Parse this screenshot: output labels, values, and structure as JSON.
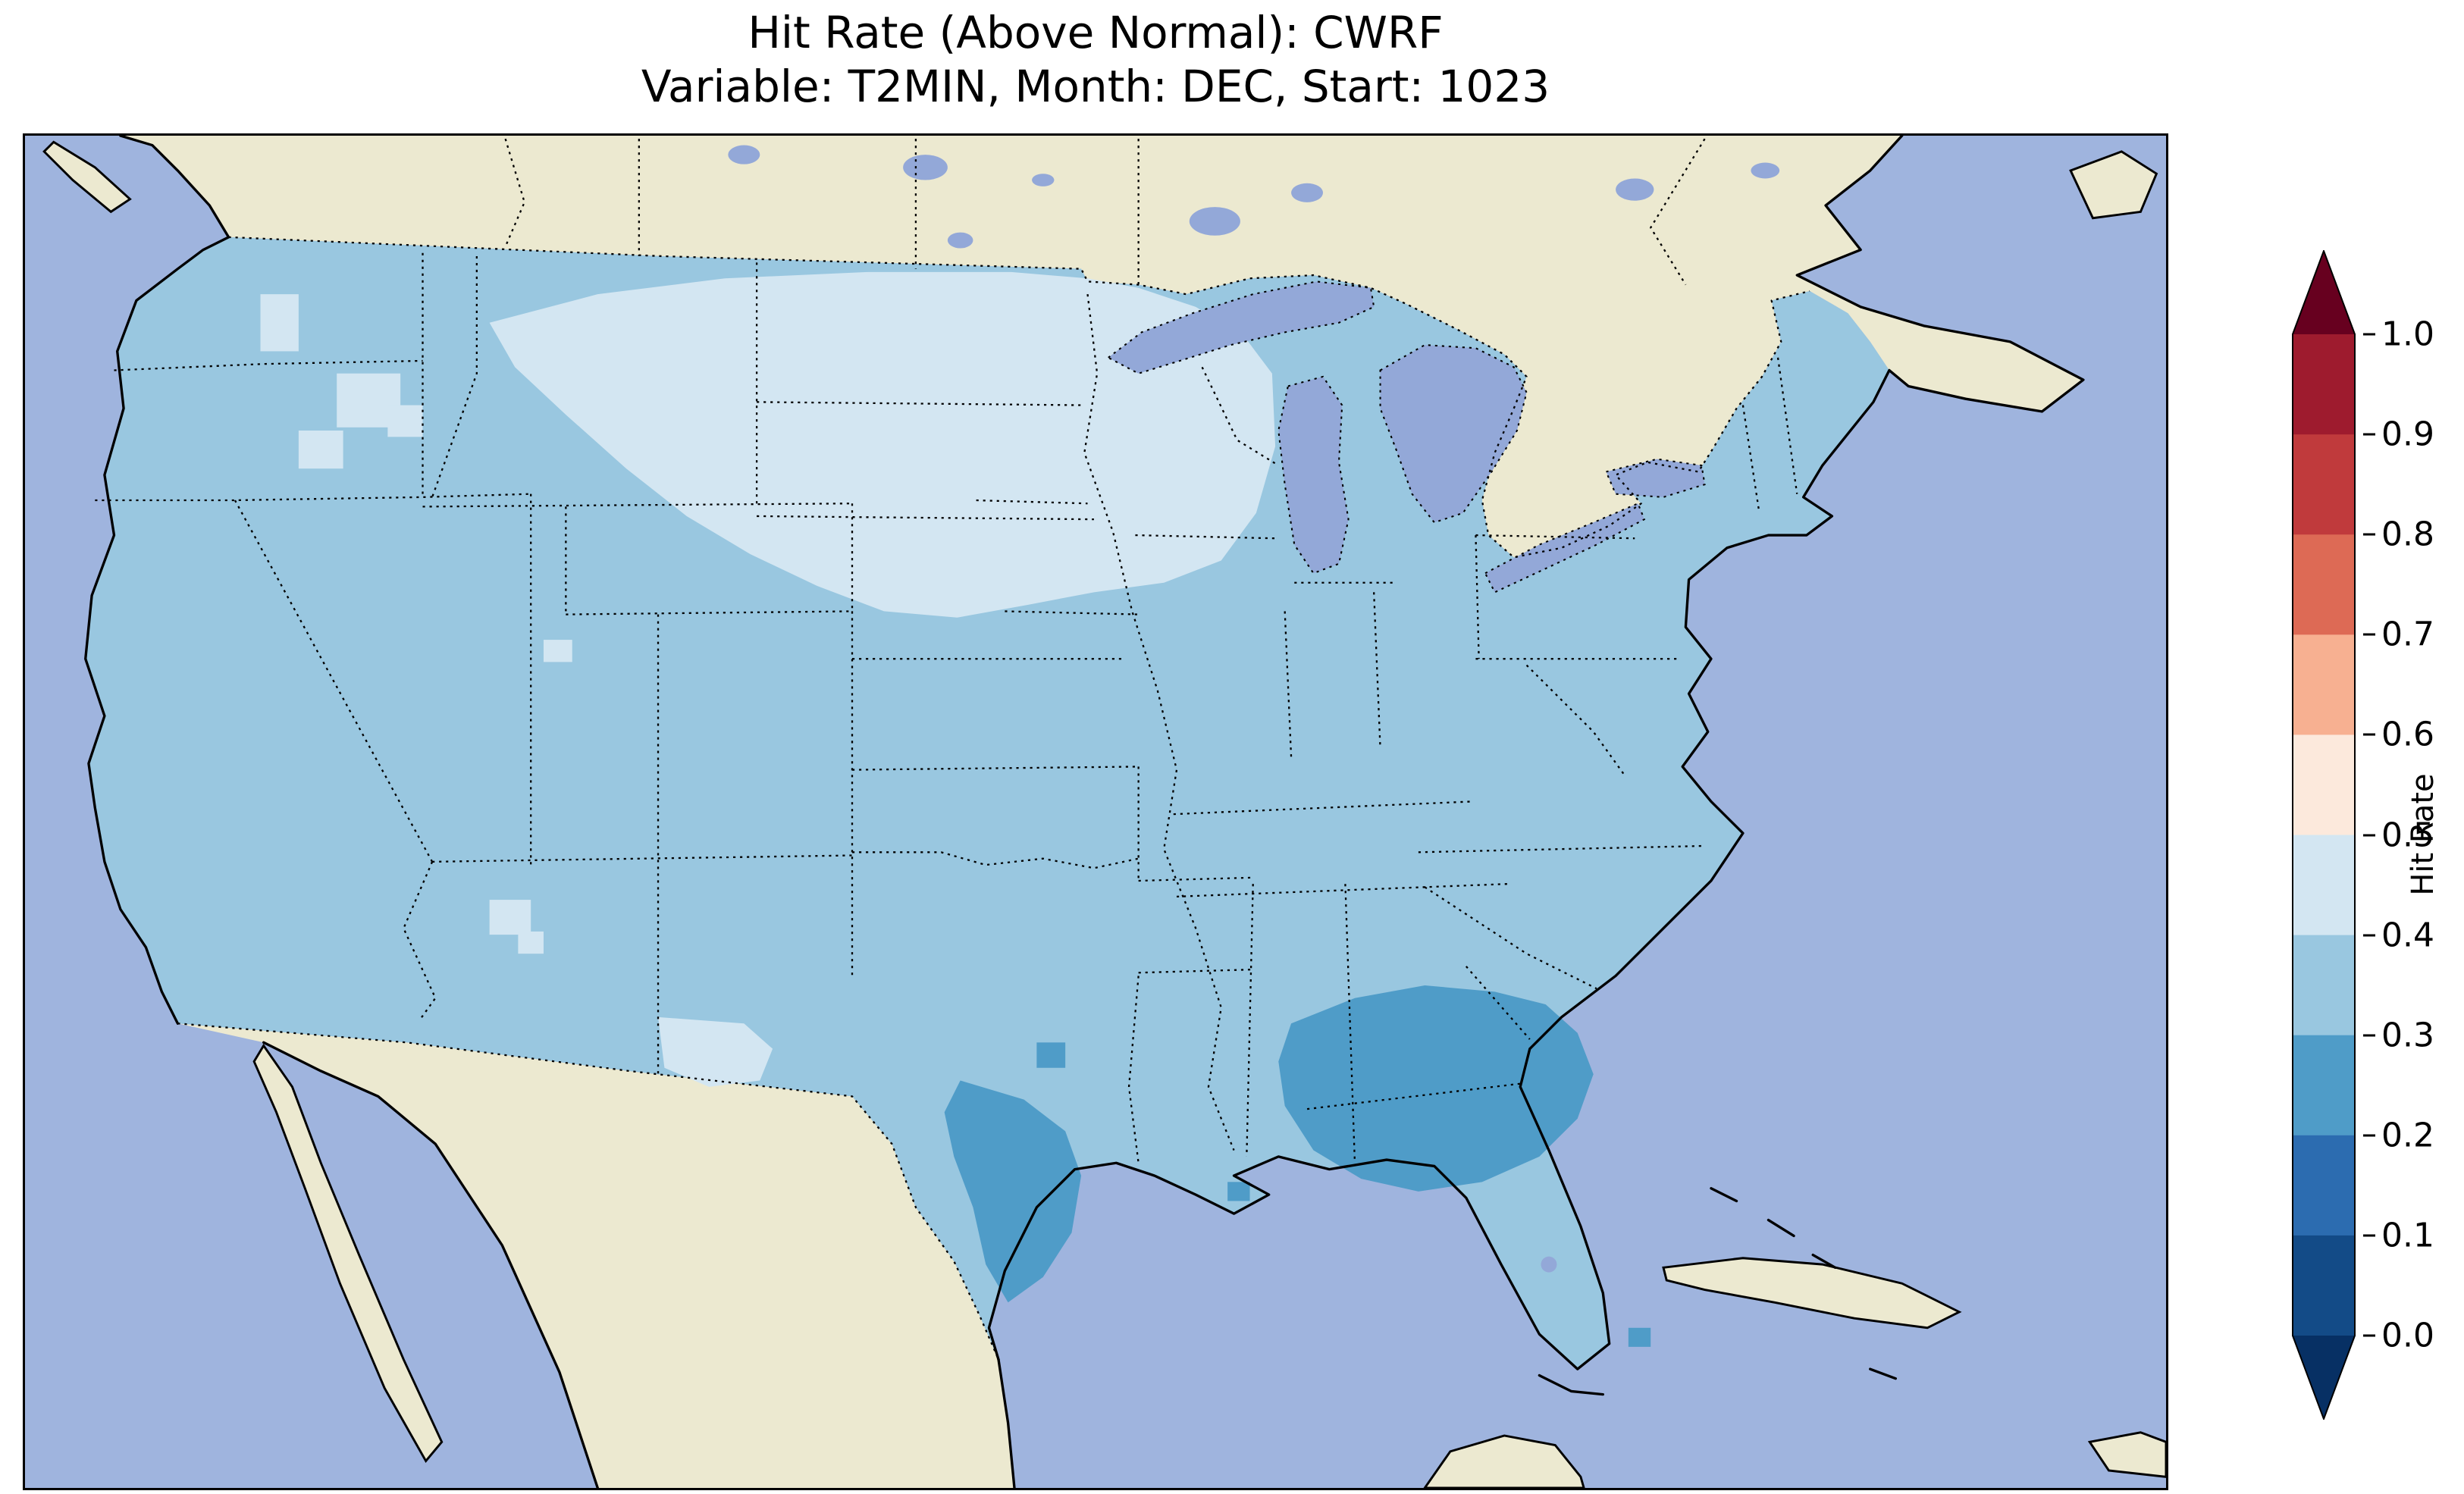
{
  "title": {
    "line1": "Hit Rate (Above Normal): CWRF",
    "line2": "Variable: T2MIN, Month: DEC, Start: 1023"
  },
  "colorbar": {
    "label": "Hit Rate",
    "ticks": [
      "1.0",
      "0.9",
      "0.8",
      "0.7",
      "0.6",
      "0.5",
      "0.4",
      "0.3",
      "0.2",
      "0.1",
      "0.0"
    ],
    "bin_colors_bottom_to_top": [
      "#134b87",
      "#2c6cb0",
      "#4f9cc8",
      "#99c7e0",
      "#d3e6f2",
      "#fce9dc",
      "#f7b091",
      "#dd6a55",
      "#c03a3c",
      "#9e1b2e"
    ],
    "under_color": "#073064",
    "over_color": "#67001f"
  },
  "palette": {
    "ocean": "#9fb4de",
    "land": "#ece9d0",
    "lake": "#93a8d8",
    "us_base": "#99c7e0",
    "us_pale": "#d3e6f2",
    "us_dark": "#4f9cc8"
  },
  "chart_data": {
    "type": "heatmap",
    "title": "Hit Rate (Above Normal): CWRF",
    "subtitle": "Variable: T2MIN, Month: DEC, Start: 1023",
    "model": "CWRF",
    "variable": "T2MIN",
    "month": "DEC",
    "start": "1023",
    "metric": "Hit Rate (Above Normal)",
    "region": "Contiguous United States map with Canada, Mexico, Caribbean context",
    "colorbar_label": "Hit Rate",
    "colorbar_range": [
      0.0,
      1.0
    ],
    "colorbar_ticks": [
      0.0,
      0.1,
      0.2,
      0.3,
      0.4,
      0.5,
      0.6,
      0.7,
      0.8,
      0.9,
      1.0
    ],
    "colormap": "RdBu_r, discrete 0.1 bins, extended triangles both ends",
    "legend_position": "right vertical colorbar",
    "observed_values": [
      {
        "area": "Most of CONUS (West, Southwest, Central Plains, Midwest, Northeast)",
        "hit_rate_bin": "0.3-0.4"
      },
      {
        "area": "Northern Plains and Upper Midwest (E Montana, Dakotas, Minnesota, Wisconsin, N Iowa)",
        "hit_rate_bin": "0.4-0.5"
      },
      {
        "area": "Scattered patches: Idaho, W Montana, N New Mexico, W Texas",
        "hit_rate_bin": "0.4-0.5"
      },
      {
        "area": "Southeast (Georgia, E Alabama, W South Carolina, FL Panhandle)",
        "hit_rate_bin": "0.2-0.3"
      },
      {
        "area": "South Texas Gulf Coast",
        "hit_rate_bin": "0.2-0.3"
      },
      {
        "area": "Oceans, Canada, Mexico, Caribbean",
        "hit_rate_bin": "no data (basemap)"
      }
    ]
  }
}
